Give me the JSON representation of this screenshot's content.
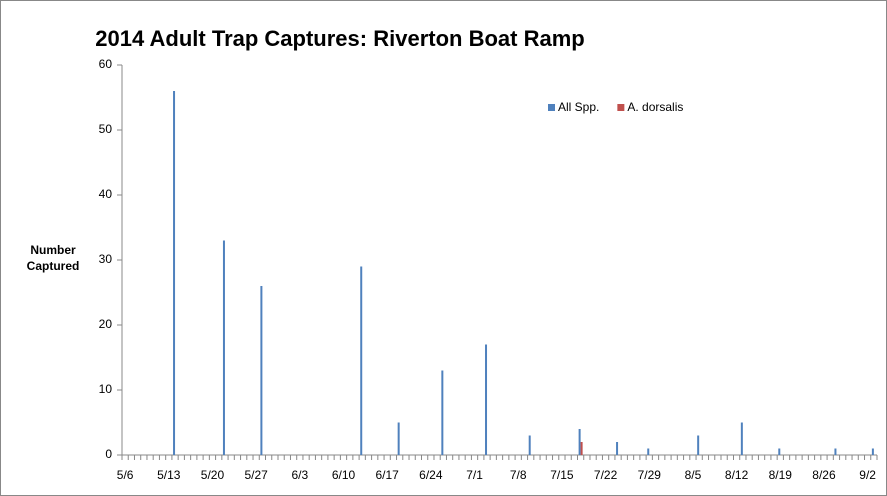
{
  "chart_data": {
    "type": "bar",
    "title": "2014 Adult Trap Captures: Riverton Boat Ramp",
    "y_label": "Number Captured",
    "categories": [
      "5/6",
      null,
      null,
      null,
      null,
      null,
      null,
      "5/13",
      null,
      null,
      null,
      null,
      null,
      null,
      "5/20",
      null,
      null,
      null,
      null,
      null,
      null,
      "5/27",
      null,
      null,
      null,
      null,
      null,
      null,
      "6/3",
      null,
      null,
      null,
      null,
      null,
      null,
      "6/10",
      null,
      null,
      null,
      null,
      null,
      null,
      "6/17",
      null,
      null,
      null,
      null,
      null,
      null,
      "6/24",
      null,
      null,
      null,
      null,
      null,
      null,
      "7/1",
      null,
      null,
      null,
      null,
      null,
      null,
      "7/8",
      null,
      null,
      null,
      null,
      null,
      null,
      "7/15",
      null,
      null,
      null,
      null,
      null,
      null,
      "7/22",
      null,
      null,
      null,
      null,
      null,
      null,
      "7/29",
      null,
      null,
      null,
      null,
      null,
      null,
      "8/5",
      null,
      null,
      null,
      null,
      null,
      null,
      "8/12",
      null,
      null,
      null,
      null,
      null,
      null,
      "8/19",
      null,
      null,
      null,
      null,
      null,
      null,
      "8/26",
      null,
      null,
      null,
      null,
      null,
      null,
      "9/2",
      null
    ],
    "series": [
      {
        "name": "All Spp.",
        "color": "#4f81bd",
        "values": [
          null,
          null,
          null,
          null,
          null,
          null,
          null,
          null,
          56,
          null,
          null,
          null,
          null,
          null,
          null,
          null,
          33,
          null,
          null,
          null,
          null,
          null,
          26,
          null,
          null,
          null,
          null,
          null,
          null,
          null,
          null,
          null,
          null,
          null,
          null,
          null,
          null,
          null,
          29,
          null,
          null,
          null,
          null,
          null,
          5,
          null,
          null,
          null,
          null,
          null,
          null,
          13,
          null,
          null,
          null,
          null,
          null,
          null,
          17,
          null,
          null,
          null,
          null,
          null,
          null,
          3,
          null,
          null,
          null,
          null,
          null,
          null,
          null,
          4,
          null,
          null,
          null,
          null,
          null,
          2,
          null,
          null,
          null,
          null,
          1,
          null,
          null,
          null,
          null,
          null,
          null,
          null,
          3,
          null,
          null,
          null,
          null,
          null,
          null,
          5,
          null,
          null,
          null,
          null,
          null,
          1,
          null,
          null,
          null,
          null,
          null,
          null,
          null,
          null,
          1,
          null,
          null,
          null,
          null,
          null,
          1
        ]
      },
      {
        "name": "A. dorsalis",
        "color": "#c0504d",
        "values": [
          null,
          null,
          null,
          null,
          null,
          null,
          null,
          null,
          null,
          null,
          null,
          null,
          null,
          null,
          null,
          null,
          null,
          null,
          null,
          null,
          null,
          null,
          null,
          null,
          null,
          null,
          null,
          null,
          null,
          null,
          null,
          null,
          null,
          null,
          null,
          null,
          null,
          null,
          null,
          null,
          null,
          null,
          null,
          null,
          null,
          null,
          null,
          null,
          null,
          null,
          null,
          null,
          null,
          null,
          null,
          null,
          null,
          null,
          null,
          null,
          null,
          null,
          null,
          null,
          null,
          null,
          null,
          null,
          null,
          null,
          null,
          null,
          null,
          2,
          null,
          null,
          null,
          null,
          null,
          null,
          null,
          null,
          null,
          null,
          null,
          null,
          null,
          null,
          null,
          null,
          null,
          null,
          null,
          null,
          null,
          null,
          null,
          null,
          null,
          null,
          null,
          null,
          null,
          null,
          null,
          null,
          null,
          null,
          null,
          null,
          null,
          null,
          null,
          null,
          null,
          null,
          null,
          null,
          null,
          null,
          null
        ]
      }
    ],
    "ylim": [
      0,
      60
    ],
    "yticks": [
      0,
      10,
      20,
      30,
      40,
      50,
      60
    ],
    "grid": false,
    "legend": "top-right"
  }
}
